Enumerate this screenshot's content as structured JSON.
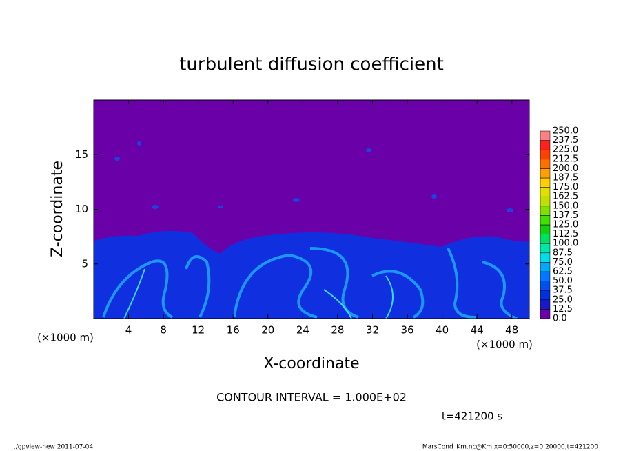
{
  "chart_data": {
    "type": "contour",
    "title": "turbulent diffusion coefficient",
    "xlabel": "X-coordinate",
    "ylabel": "Z-coordinate",
    "x_unit": "(×1000 m)",
    "xlim": [
      0,
      50
    ],
    "xticks": [
      4,
      8,
      12,
      16,
      20,
      24,
      28,
      32,
      36,
      40,
      44,
      48
    ],
    "ylim": [
      0,
      20
    ],
    "yticks": [
      5,
      10,
      15
    ],
    "colorbar": {
      "ticks": [
        {
          "value": 0,
          "label": "0.0"
        },
        12.5,
        {
          "value": 25,
          "label": "25.0"
        },
        37.5,
        {
          "value": 50,
          "label": "50.0"
        },
        62.5,
        {
          "value": 75,
          "label": "75.0"
        },
        87.5,
        {
          "value": 100,
          "label": "100.0"
        },
        112.5,
        {
          "value": 125,
          "label": "125.0"
        },
        137.5,
        {
          "value": 150,
          "label": "150.0"
        },
        162.5,
        {
          "value": 175,
          "label": "175.0"
        },
        187.5,
        {
          "value": 200,
          "label": "200.0"
        },
        212.5,
        {
          "value": 225,
          "label": "225.0"
        },
        237.5,
        {
          "value": 250,
          "label": "250.0"
        }
      ],
      "colors": [
        "#6a00a8",
        "#1a18c8",
        "#0030e0",
        "#0050f0",
        "#0078ff",
        "#00a8ff",
        "#00dce8",
        "#00e8a8",
        "#00e060",
        "#10d010",
        "#40e000",
        "#80e000",
        "#c0e000",
        "#e0e000",
        "#ffd000",
        "#ffa000",
        "#ff7000",
        "#ff4000",
        "#ff2020",
        "#ff8080"
      ]
    },
    "contour_note": "CONTOUR INTERVAL = 1.000E+02",
    "time_label": "t=421200 s",
    "footer_left": "./gpview-new  2011-07-04",
    "footer_right": "MarsCond_Km.nc@Km,x=0:50000,z=0:20000,t=421200"
  }
}
